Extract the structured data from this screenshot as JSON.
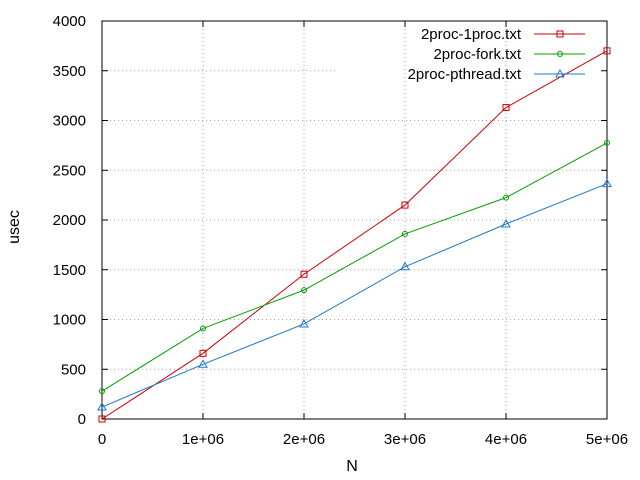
{
  "chart_data": {
    "type": "line",
    "title": "",
    "xlabel": "N",
    "ylabel": "usec",
    "xlim": [
      0,
      5000000
    ],
    "ylim": [
      0,
      4000
    ],
    "grid": true,
    "legend_position": "top-right",
    "x_ticks": [
      {
        "value": 0,
        "label": "0"
      },
      {
        "value": 1000000,
        "label": "1e+06"
      },
      {
        "value": 2000000,
        "label": "2e+06"
      },
      {
        "value": 3000000,
        "label": "3e+06"
      },
      {
        "value": 4000000,
        "label": "4e+06"
      },
      {
        "value": 5000000,
        "label": "5e+06"
      }
    ],
    "y_ticks": [
      {
        "value": 0,
        "label": "0"
      },
      {
        "value": 500,
        "label": "500"
      },
      {
        "value": 1000,
        "label": "1000"
      },
      {
        "value": 1500,
        "label": "1500"
      },
      {
        "value": 2000,
        "label": "2000"
      },
      {
        "value": 2500,
        "label": "2500"
      },
      {
        "value": 3000,
        "label": "3000"
      },
      {
        "value": 3500,
        "label": "3500"
      },
      {
        "value": 4000,
        "label": "4000"
      }
    ],
    "x": [
      0,
      1000000,
      2000000,
      3000000,
      4000000,
      5000000
    ],
    "series": [
      {
        "name": "2proc-1proc.txt",
        "color": "#cc0000",
        "marker": "square",
        "values": [
          0,
          660,
          1455,
          2150,
          3130,
          3700
        ]
      },
      {
        "name": "2proc-fork.txt",
        "color": "#00a000",
        "marker": "circle",
        "values": [
          280,
          910,
          1295,
          1860,
          2225,
          2775
        ]
      },
      {
        "name": "2proc-pthread.txt",
        "color": "#1f78c8",
        "marker": "triangle",
        "values": [
          120,
          550,
          955,
          1530,
          1960,
          2365
        ]
      }
    ]
  }
}
